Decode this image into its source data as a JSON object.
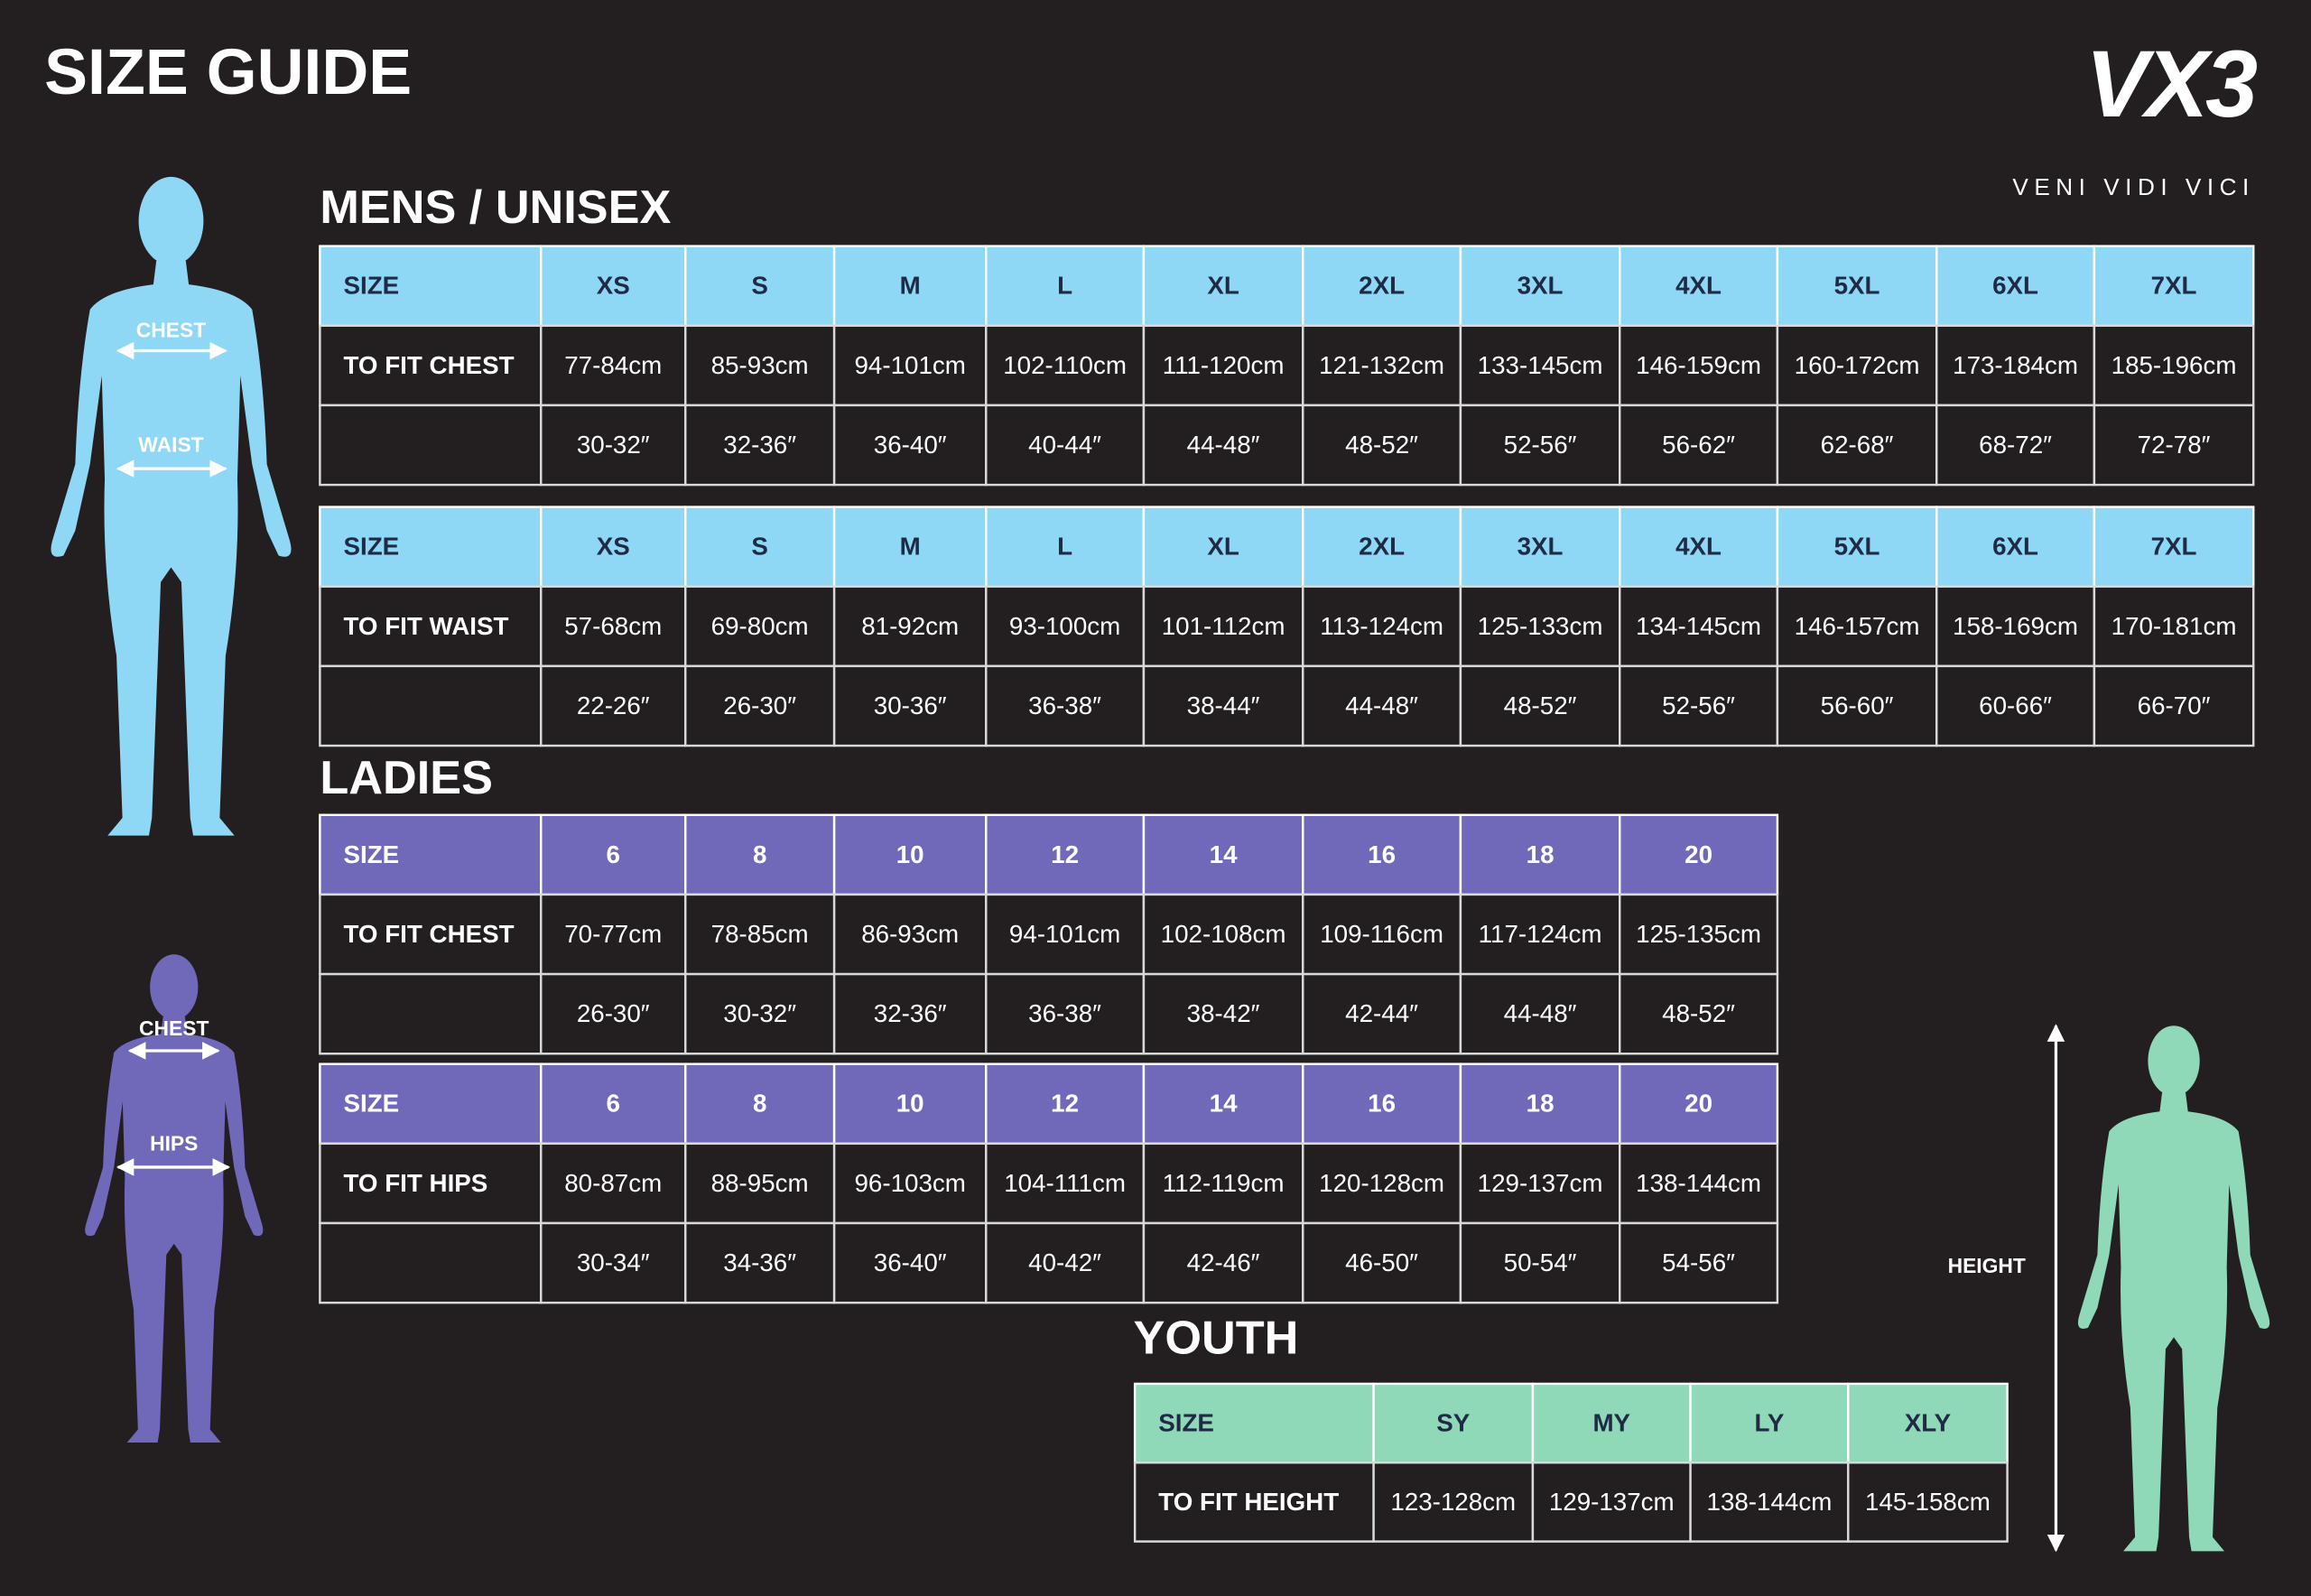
{
  "header": {
    "title": "SIZE GUIDE",
    "logo": "VX3",
    "tagline": "VENI VIDI VICI"
  },
  "figures": {
    "mens": {
      "chest": "CHEST",
      "waist": "WAIST"
    },
    "ladies": {
      "chest": "CHEST",
      "hips": "HIPS"
    },
    "youth": {
      "height": "HEIGHT"
    }
  },
  "sections": [
    {
      "title": "MENS / UNISEX",
      "tables": [
        {
          "header": [
            "SIZE",
            "XS",
            "S",
            "M",
            "L",
            "XL",
            "2XL",
            "3XL",
            "4XL",
            "5XL",
            "6XL",
            "7XL"
          ],
          "rows": [
            [
              "TO FIT CHEST",
              "77-84cm",
              "85-93cm",
              "94-101cm",
              "102-110cm",
              "111-120cm",
              "121-132cm",
              "133-145cm",
              "146-159cm",
              "160-172cm",
              "173-184cm",
              "185-196cm"
            ],
            [
              "30-32″",
              "32-36″",
              "36-40″",
              "40-44″",
              "44-48″",
              "48-52″",
              "52-56″",
              "56-62″",
              "62-68″",
              "68-72″",
              "72-78″"
            ]
          ]
        },
        {
          "header": [
            "SIZE",
            "XS",
            "S",
            "M",
            "L",
            "XL",
            "2XL",
            "3XL",
            "4XL",
            "5XL",
            "6XL",
            "7XL"
          ],
          "rows": [
            [
              "TO FIT WAIST",
              "57-68cm",
              "69-80cm",
              "81-92cm",
              "93-100cm",
              "101-112cm",
              "113-124cm",
              "125-133cm",
              "134-145cm",
              "146-157cm",
              "158-169cm",
              "170-181cm"
            ],
            [
              "22-26″",
              "26-30″",
              "30-36″",
              "36-38″",
              "38-44″",
              "44-48″",
              "48-52″",
              "52-56″",
              "56-60″",
              "60-66″",
              "66-70″"
            ]
          ]
        }
      ]
    },
    {
      "title": "LADIES",
      "tables": [
        {
          "header": [
            "SIZE",
            "6",
            "8",
            "10",
            "12",
            "14",
            "16",
            "18",
            "20"
          ],
          "rows": [
            [
              "TO FIT CHEST",
              "70-77cm",
              "78-85cm",
              "86-93cm",
              "94-101cm",
              "102-108cm",
              "109-116cm",
              "117-124cm",
              "125-135cm"
            ],
            [
              "26-30″",
              "30-32″",
              "32-36″",
              "36-38″",
              "38-42″",
              "42-44″",
              "44-48″",
              "48-52″"
            ]
          ]
        },
        {
          "header": [
            "SIZE",
            "6",
            "8",
            "10",
            "12",
            "14",
            "16",
            "18",
            "20"
          ],
          "rows": [
            [
              "TO FIT HIPS",
              "80-87cm",
              "88-95cm",
              "96-103cm",
              "104-111cm",
              "112-119cm",
              "120-128cm",
              "129-137cm",
              "138-144cm"
            ],
            [
              "30-34″",
              "34-36″",
              "36-40″",
              "40-42″",
              "42-46″",
              "46-50″",
              "50-54″",
              "54-56″"
            ]
          ]
        }
      ]
    },
    {
      "title": "YOUTH",
      "tables": [
        {
          "header": [
            "SIZE",
            "SY",
            "MY",
            "LY",
            "XLY"
          ],
          "rows": [
            [
              "TO FIT HEIGHT",
              "123-128cm",
              "129-137cm",
              "138-144cm",
              "145-158cm"
            ]
          ]
        }
      ]
    }
  ]
}
